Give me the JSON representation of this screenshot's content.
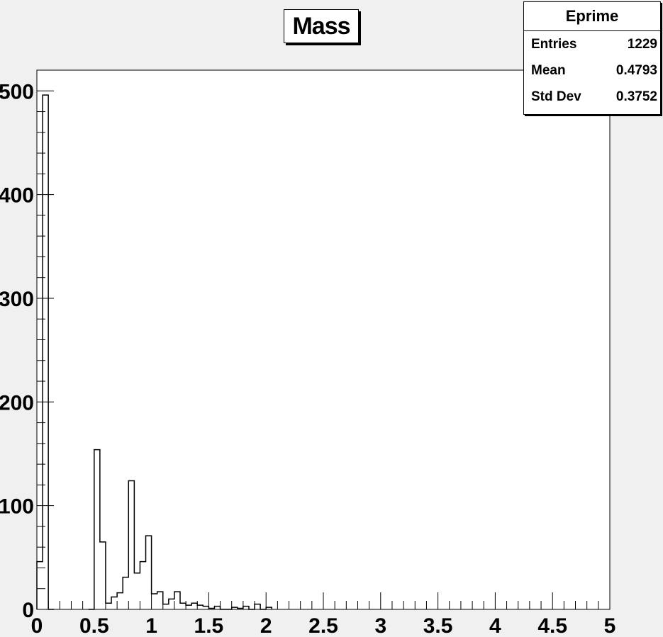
{
  "chart_data": {
    "type": "bar",
    "title": "Mass",
    "stats": {
      "name": "Eprime",
      "rows": [
        {
          "label": "Entries",
          "value": "1229"
        },
        {
          "label": "Mean",
          "value": "0.4793"
        },
        {
          "label": "Std Dev",
          "value": "0.3752"
        }
      ]
    },
    "bin_width": 0.05,
    "xlim": [
      0,
      5
    ],
    "ylim": [
      0,
      520
    ],
    "x_ticks": [
      "0",
      "0.5",
      "1",
      "1.5",
      "2",
      "2.5",
      "3",
      "3.5",
      "4",
      "4.5",
      "5"
    ],
    "y_ticks": [
      "0",
      "100",
      "200",
      "300",
      "400",
      "500"
    ],
    "bin_low_edges": [
      0,
      0.05,
      0.1,
      0.45,
      0.5,
      0.55,
      0.6,
      0.65,
      0.7,
      0.75,
      0.8,
      0.85,
      0.9,
      0.95,
      1.0,
      1.05,
      1.1,
      1.15,
      1.2,
      1.25,
      1.3,
      1.35,
      1.4,
      1.45,
      1.5,
      1.55,
      1.6,
      1.65,
      1.7,
      1.75,
      1.8,
      1.85,
      1.9,
      1.95,
      2.0
    ],
    "values": [
      46,
      496,
      0,
      0,
      154,
      65,
      6,
      12,
      16,
      31,
      124,
      35,
      46,
      71,
      15,
      17,
      5,
      10,
      17,
      6,
      4,
      6,
      4,
      3,
      1,
      3,
      0,
      0,
      2,
      1,
      3,
      0,
      5,
      0,
      2
    ]
  }
}
